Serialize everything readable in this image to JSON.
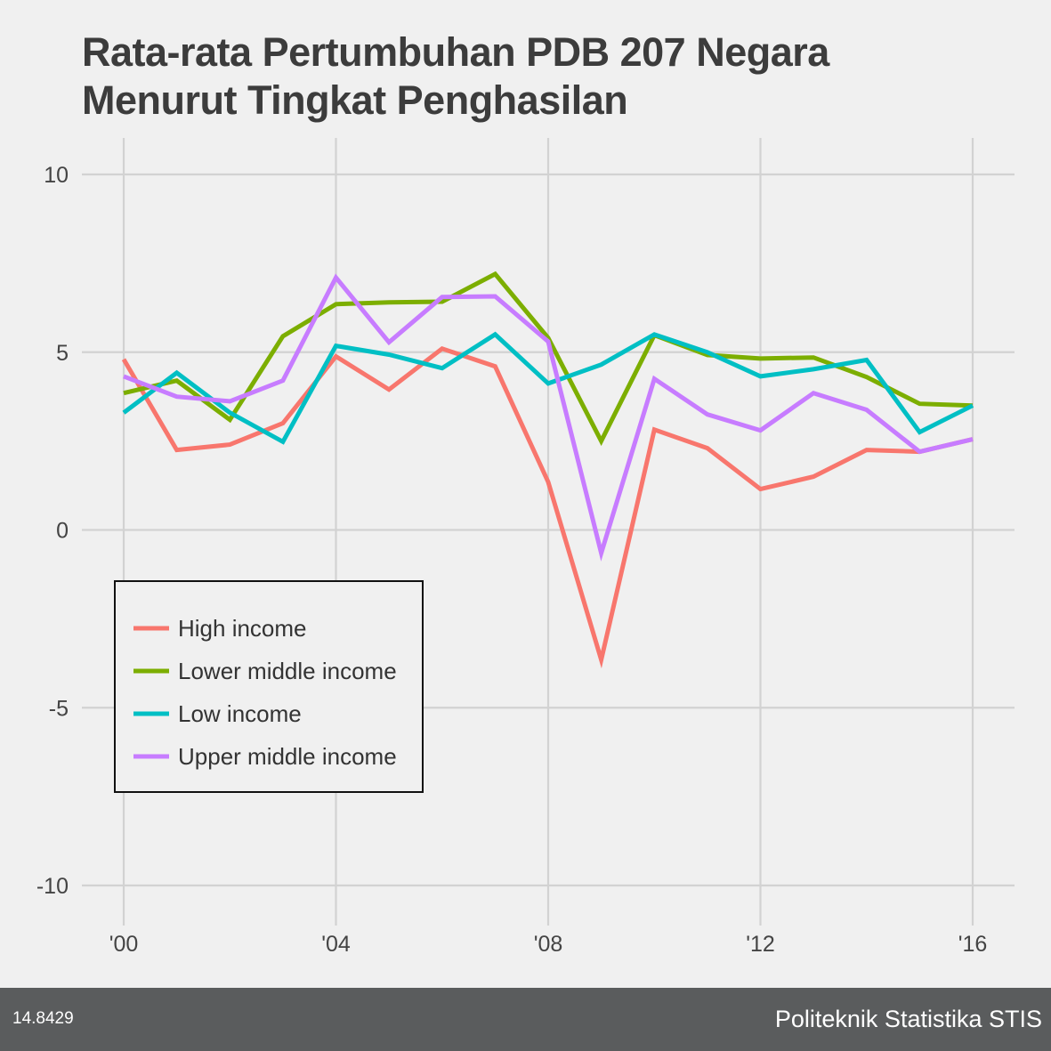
{
  "chart_data": {
    "type": "line",
    "title": [
      "Rata-rata Pertumbuhan PDB 207 Negara",
      "Menurut Tingkat Penghasilan"
    ],
    "x": [
      2000,
      2001,
      2002,
      2003,
      2004,
      2005,
      2006,
      2007,
      2008,
      2009,
      2010,
      2011,
      2012,
      2013,
      2014,
      2015,
      2016
    ],
    "x_tick_values": [
      2000,
      2004,
      2008,
      2012,
      2016
    ],
    "x_tick_labels": [
      "'00",
      "'04",
      "'08",
      "'12",
      "'16"
    ],
    "y_ticks": [
      10,
      5,
      0,
      -5,
      -10
    ],
    "ylim": [
      -10,
      10
    ],
    "grid": true,
    "legend_position": "bottom-left",
    "series": [
      {
        "name": "High income",
        "color": "#f8766d",
        "values": [
          4.8,
          2.25,
          2.4,
          3.0,
          4.88,
          3.95,
          5.1,
          4.6,
          1.35,
          -3.65,
          2.82,
          2.3,
          1.15,
          1.5,
          2.25,
          2.2,
          2.55
        ]
      },
      {
        "name": "Lower middle income",
        "color": "#7cae00",
        "values": [
          3.85,
          4.2,
          3.1,
          5.45,
          6.35,
          6.4,
          6.42,
          7.2,
          5.4,
          2.5,
          5.48,
          4.92,
          4.82,
          4.85,
          4.3,
          3.55,
          3.5
        ]
      },
      {
        "name": "Low income",
        "color": "#00bfc4",
        "values": [
          3.3,
          4.42,
          3.3,
          2.48,
          5.18,
          4.93,
          4.55,
          5.5,
          4.12,
          4.65,
          5.5,
          5.0,
          4.32,
          4.52,
          4.78,
          2.75,
          3.5
        ]
      },
      {
        "name": "Upper middle income",
        "color": "#c77cff",
        "values": [
          4.32,
          3.75,
          3.62,
          4.2,
          7.1,
          5.28,
          6.55,
          6.57,
          5.3,
          -0.65,
          4.25,
          3.25,
          2.8,
          3.85,
          3.38,
          2.2,
          2.55
        ]
      }
    ]
  },
  "footer": {
    "left": "14.8429",
    "right": "Politeknik Statistika STIS"
  }
}
